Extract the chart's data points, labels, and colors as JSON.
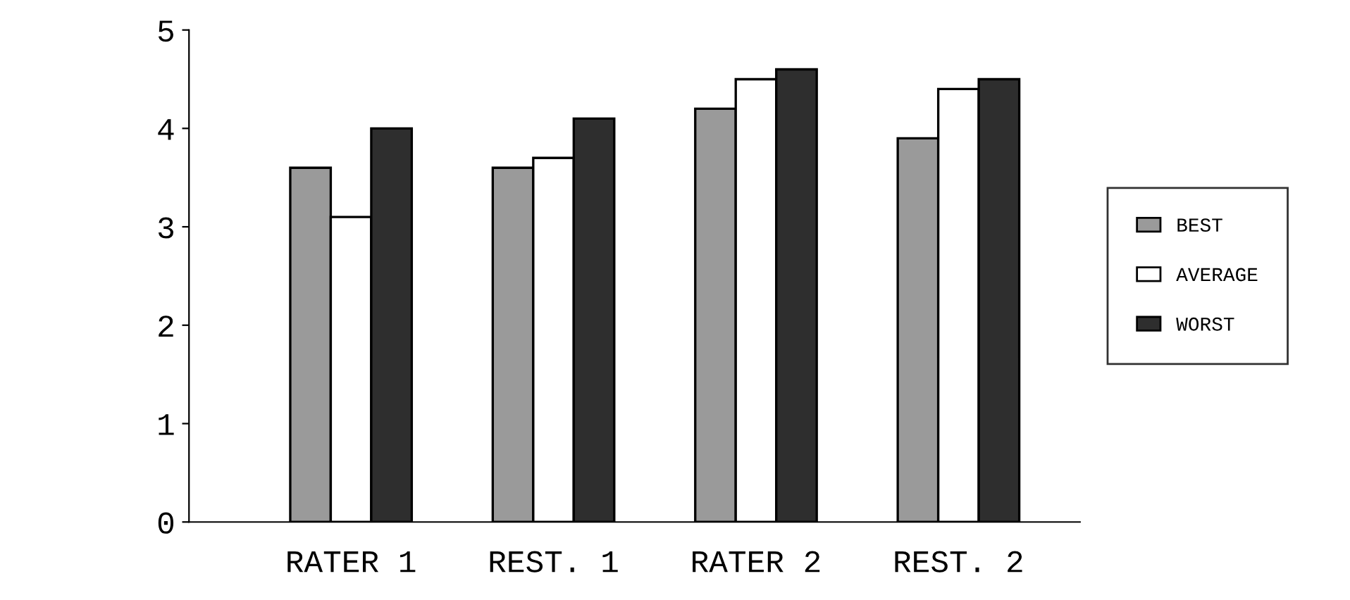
{
  "chart_data": {
    "type": "bar",
    "categories": [
      "RATER 1",
      "REST. 1",
      "RATER 2",
      "REST. 2"
    ],
    "series": [
      {
        "name": "BEST",
        "color": "#9a9a9a",
        "values": [
          3.6,
          3.6,
          4.2,
          3.9
        ]
      },
      {
        "name": "AVERAGE",
        "color": "#ffffff",
        "values": [
          3.1,
          3.7,
          4.5,
          4.4
        ]
      },
      {
        "name": "WORST",
        "color": "#2e2e2e",
        "values": [
          4.0,
          4.1,
          4.6,
          4.5
        ]
      }
    ],
    "ylim": [
      0,
      5
    ],
    "yticks": [
      0,
      1,
      2,
      3,
      4,
      5
    ],
    "grid": false,
    "legend": "right"
  }
}
